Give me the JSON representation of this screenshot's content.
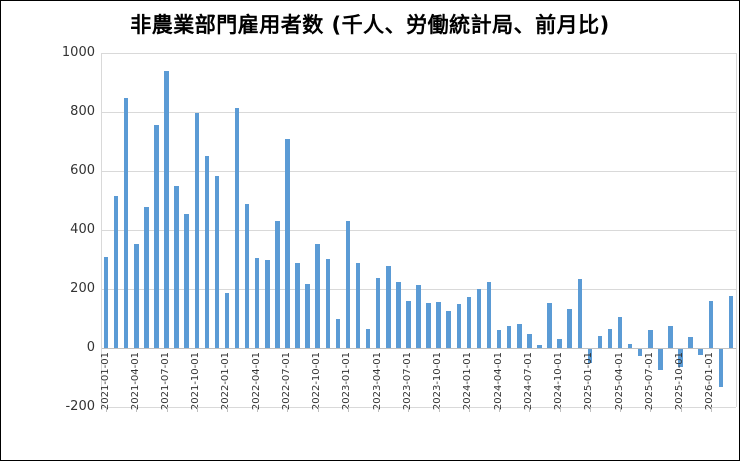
{
  "chart_data": {
    "type": "bar",
    "title": "非農業部門雇用者数 (千人、労働統計局、前月比)",
    "xlabel": "",
    "ylabel": "",
    "ylim": [
      -200,
      1000
    ],
    "y_ticks": [
      1000,
      800,
      600,
      400,
      200,
      0,
      -200
    ],
    "x_tick_step": 3,
    "grid": true,
    "legend": "none",
    "bar_color": "#5b9bd5",
    "grid_color": "#d9d9d9",
    "x": [
      "2021-01-01",
      "2021-02-01",
      "2021-03-01",
      "2021-04-01",
      "2021-05-01",
      "2021-06-01",
      "2021-07-01",
      "2021-08-01",
      "2021-09-01",
      "2021-10-01",
      "2021-11-01",
      "2021-12-01",
      "2022-01-01",
      "2022-02-01",
      "2022-03-01",
      "2022-04-01",
      "2022-05-01",
      "2022-06-01",
      "2022-07-01",
      "2022-08-01",
      "2022-09-01",
      "2022-10-01",
      "2022-11-01",
      "2022-12-01",
      "2023-01-01",
      "2023-02-01",
      "2023-03-01",
      "2023-04-01",
      "2023-05-01",
      "2023-06-01",
      "2023-07-01",
      "2023-08-01",
      "2023-09-01",
      "2023-10-01",
      "2023-11-01",
      "2023-12-01",
      "2024-01-01",
      "2024-02-01",
      "2024-03-01",
      "2024-04-01",
      "2024-05-01",
      "2024-06-01",
      "2024-07-01",
      "2024-08-01",
      "2024-09-01",
      "2024-10-01",
      "2024-11-01",
      "2024-12-01",
      "2025-01-01",
      "2025-02-01",
      "2025-03-01",
      "2025-04-01",
      "2025-05-01",
      "2025-06-01",
      "2025-07-01",
      "2025-08-01",
      "2025-09-01",
      "2025-10-01",
      "2025-11-01",
      "2025-12-01",
      "2026-01-01",
      "2026-02-01",
      "2026-03-01"
    ],
    "values": [
      310,
      515,
      848,
      354,
      478,
      755,
      940,
      549,
      455,
      797,
      652,
      582,
      188,
      814,
      488,
      305,
      297,
      429,
      710,
      288,
      217,
      353,
      302,
      99,
      429,
      288,
      66,
      237,
      277,
      224,
      160,
      215,
      153,
      156,
      127,
      150,
      172,
      201,
      224,
      60,
      73,
      82,
      47,
      9,
      151,
      31,
      131,
      234,
      -49,
      40,
      66,
      104,
      14,
      -23,
      60,
      -70,
      73,
      -60,
      37,
      -20,
      160,
      -130,
      175
    ]
  }
}
